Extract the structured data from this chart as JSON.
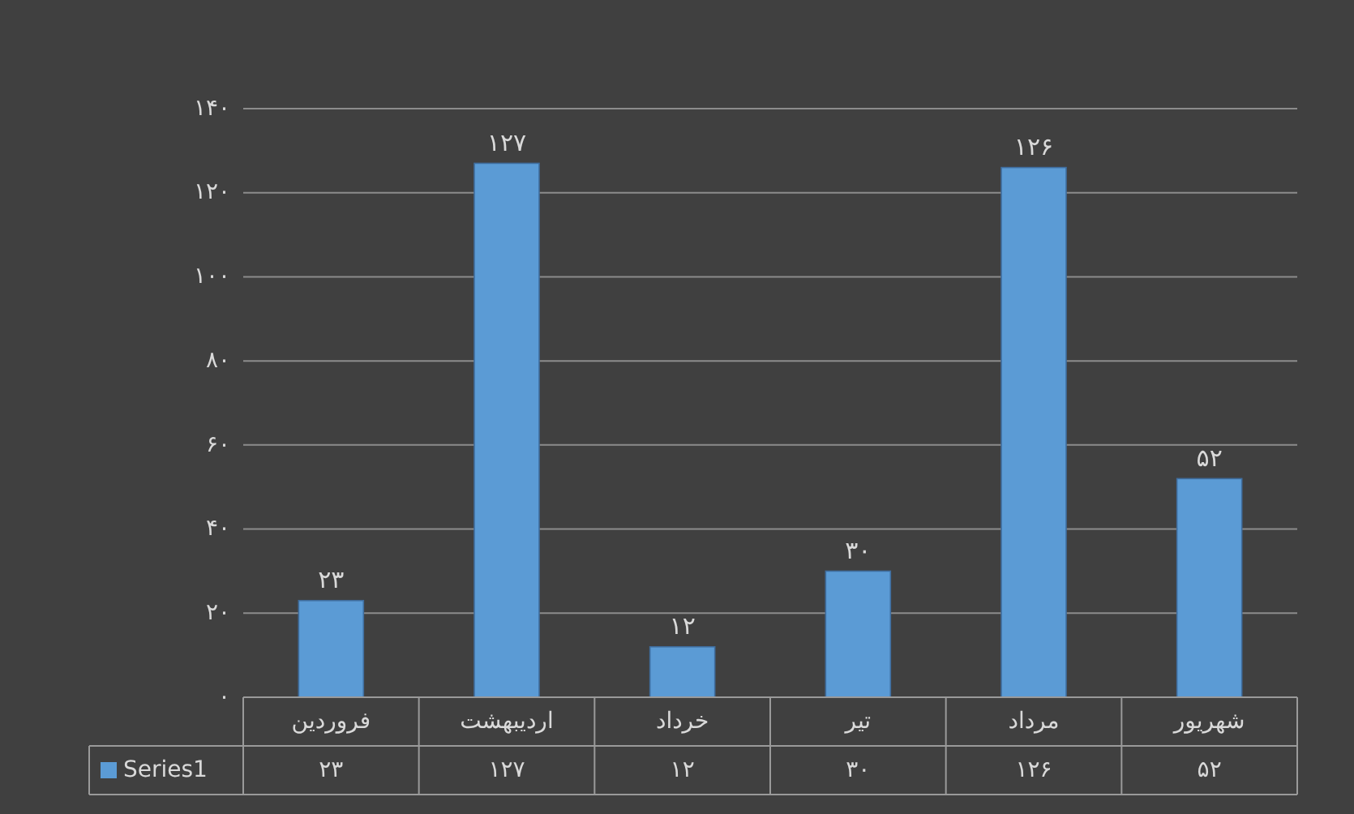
{
  "chart_data": {
    "type": "bar",
    "categories": [
      "فروردین",
      "اردیبهشت",
      "خرداد",
      "تیر",
      "مرداد",
      "شهریور"
    ],
    "series": [
      {
        "name": "Series1",
        "color": "#5b9bd5",
        "values": [
          23,
          127,
          12,
          30,
          126,
          52
        ],
        "value_labels": [
          "۲۳",
          "۱۲۷",
          "۱۲",
          "۳۰",
          "۱۲۶",
          "۵۲"
        ]
      }
    ],
    "ylim": [
      0,
      140
    ],
    "yticks": [
      {
        "value": 0,
        "label": "۰"
      },
      {
        "value": 20,
        "label": "۲۰"
      },
      {
        "value": 40,
        "label": "۴۰"
      },
      {
        "value": 60,
        "label": "۶۰"
      },
      {
        "value": 80,
        "label": "۸۰"
      },
      {
        "value": 100,
        "label": "۱۰۰"
      },
      {
        "value": 120,
        "label": "۱۲۰"
      },
      {
        "value": 140,
        "label": "۱۴۰"
      }
    ],
    "grid": "y",
    "legend": "bottom",
    "data_labels": true
  }
}
